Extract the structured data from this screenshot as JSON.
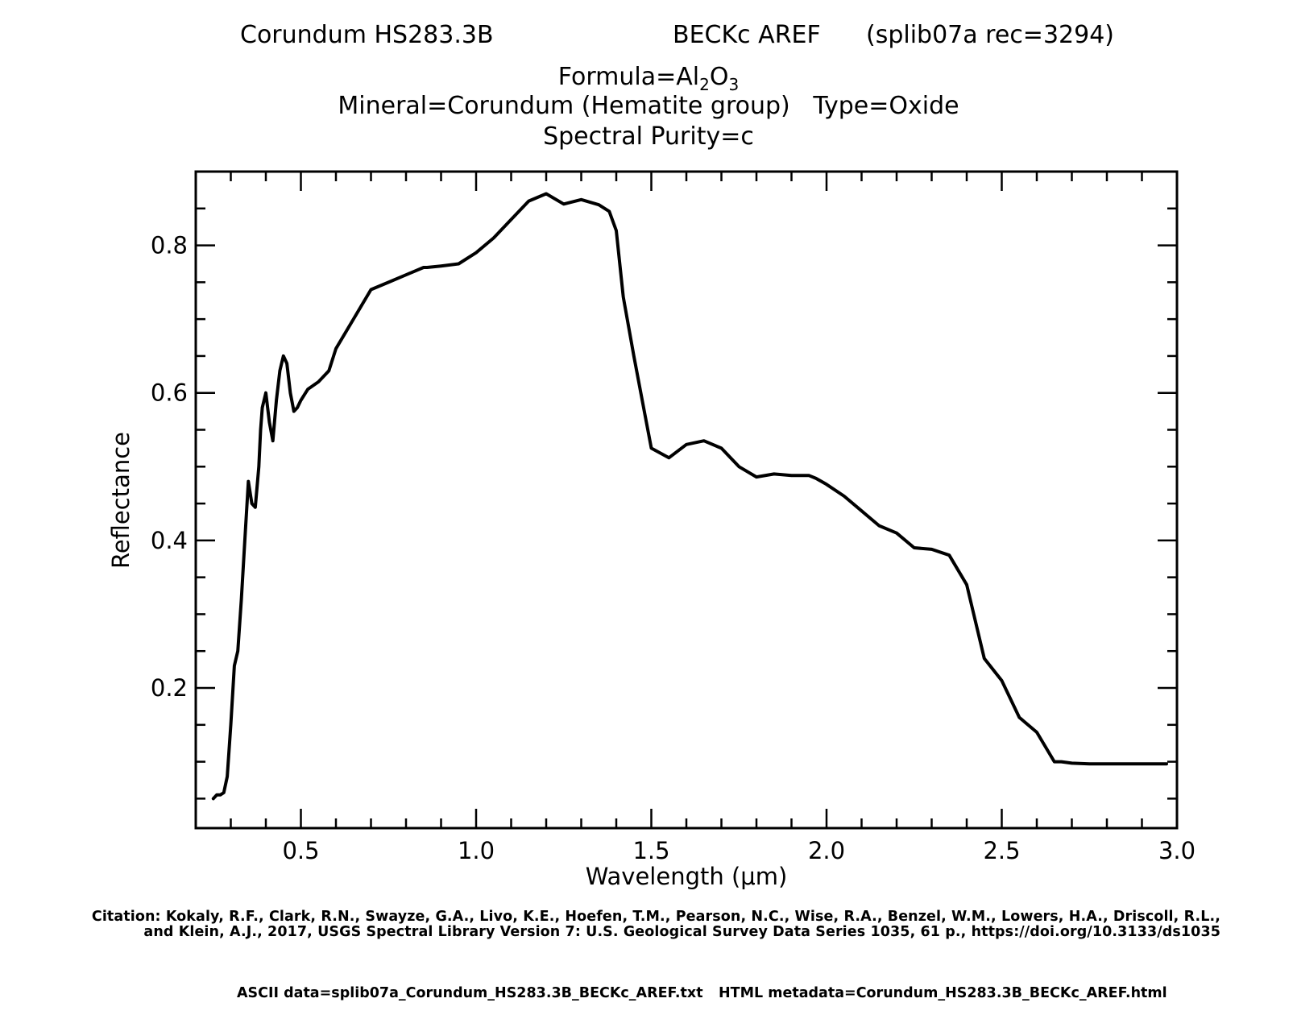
{
  "header": {
    "sample": "Corundum HS283.3B",
    "spectrometer": "BECKc AREF",
    "record": "(splib07a rec=3294)"
  },
  "formula": {
    "prefix": "Formula=Al",
    "sub1": "2",
    "mid": "O",
    "sub2": "3"
  },
  "mineral_line": "Mineral=Corundum (Hematite group)   Type=Oxide",
  "purity_line": "Spectral Purity=c",
  "citation_line1": "Citation: Kokaly, R.F., Clark, R.N., Swayze, G.A., Livo, K.E., Hoefen, T.M., Pearson, N.C., Wise, R.A., Benzel, W.M., Lowers, H.A., Driscoll, R.L.,",
  "citation_line2": "and Klein, A.J., 2017, USGS Spectral Library Version 7: U.S. Geological Survey Data Series 1035, 61 p., https://doi.org/10.3133/ds1035",
  "ascii_data": "ASCII data=splib07a_Corundum_HS283.3B_BECKc_AREF.txt",
  "html_metadata": "HTML metadata=Corundum_HS283.3B_BECKc_AREF.html",
  "chart_data": {
    "type": "line",
    "title": "Corundum HS283.3B",
    "xlabel": "Wavelength (μm)",
    "ylabel": "Reflectance",
    "xlim": [
      0.2,
      3.0
    ],
    "ylim": [
      0.01,
      0.9
    ],
    "xticks": [
      0.5,
      1.0,
      1.5,
      2.0,
      2.5,
      3.0
    ],
    "xtick_labels": [
      "0.5",
      "1.0",
      "1.5",
      "2.0",
      "2.5",
      "3.0"
    ],
    "yticks": [
      0.2,
      0.4,
      0.6,
      0.8
    ],
    "ytick_labels": [
      "0.2",
      "0.4",
      "0.6",
      "0.8"
    ],
    "line_color": "#000000",
    "series": [
      {
        "x": [
          0.25,
          0.26,
          0.27,
          0.28,
          0.29,
          0.3,
          0.31,
          0.32,
          0.33,
          0.34,
          0.35,
          0.36,
          0.37,
          0.38,
          0.385,
          0.39,
          0.4,
          0.41,
          0.42,
          0.43,
          0.44,
          0.45,
          0.46,
          0.47,
          0.48,
          0.49,
          0.5,
          0.52,
          0.55,
          0.58,
          0.6,
          0.65,
          0.7,
          0.75,
          0.8,
          0.85,
          0.86,
          0.9,
          0.95,
          1.0,
          1.05,
          1.1,
          1.15,
          1.2,
          1.25,
          1.3,
          1.35,
          1.38,
          1.4,
          1.42,
          1.45,
          1.48,
          1.5,
          1.55,
          1.6,
          1.65,
          1.7,
          1.75,
          1.8,
          1.85,
          1.9,
          1.95,
          1.97,
          2.0,
          2.05,
          2.1,
          2.15,
          2.2,
          2.25,
          2.3,
          2.35,
          2.4,
          2.45,
          2.5,
          2.55,
          2.6,
          2.65,
          2.67,
          2.7,
          2.75,
          2.8,
          2.85,
          2.9,
          2.95,
          2.97
        ],
        "y": [
          0.05,
          0.055,
          0.055,
          0.058,
          0.08,
          0.15,
          0.23,
          0.25,
          0.32,
          0.4,
          0.48,
          0.45,
          0.445,
          0.5,
          0.55,
          0.58,
          0.6,
          0.56,
          0.535,
          0.59,
          0.63,
          0.65,
          0.64,
          0.6,
          0.575,
          0.58,
          0.59,
          0.605,
          0.615,
          0.63,
          0.66,
          0.7,
          0.74,
          0.75,
          0.76,
          0.77,
          0.77,
          0.772,
          0.775,
          0.79,
          0.81,
          0.835,
          0.86,
          0.87,
          0.856,
          0.862,
          0.855,
          0.846,
          0.82,
          0.73,
          0.65,
          0.575,
          0.525,
          0.512,
          0.53,
          0.535,
          0.525,
          0.5,
          0.486,
          0.49,
          0.488,
          0.488,
          0.484,
          0.476,
          0.46,
          0.44,
          0.42,
          0.41,
          0.39,
          0.388,
          0.38,
          0.34,
          0.24,
          0.21,
          0.16,
          0.14,
          0.1,
          0.1,
          0.098,
          0.097,
          0.097,
          0.097,
          0.097,
          0.097,
          0.097
        ]
      }
    ]
  }
}
